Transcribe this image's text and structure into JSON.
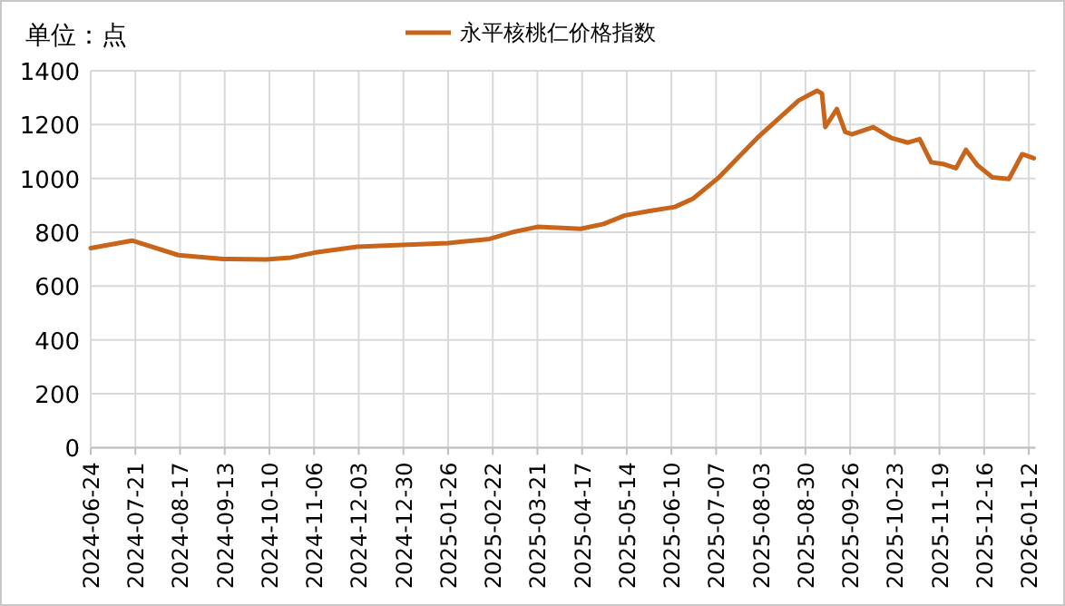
{
  "chart_data": {
    "type": "line",
    "ylabel": "单位：点",
    "legend": "top",
    "grid": true,
    "xlim": [
      "2024-06-24",
      "2026-01-16"
    ],
    "xticks": [
      "2024-06-24",
      "2024-07-21",
      "2024-08-17",
      "2024-09-13",
      "2024-10-10",
      "2024-11-06",
      "2024-12-03",
      "2024-12-30",
      "2025-01-26",
      "2025-02-22",
      "2025-03-21",
      "2025-04-17",
      "2025-05-14",
      "2025-06-10",
      "2025-07-07",
      "2025-08-03",
      "2025-08-30",
      "2025-09-26",
      "2025-10-23",
      "2025-11-19",
      "2025-12-16",
      "2026-01-12"
    ],
    "ylim": [
      0,
      1400
    ],
    "yticks": [
      0,
      200,
      400,
      600,
      800,
      1000,
      1200,
      1400
    ],
    "x": [
      "2024-06-24",
      "2024-07-19",
      "2024-08-16",
      "2024-09-12",
      "2024-10-08",
      "2024-10-23",
      "2024-11-06",
      "2024-12-02",
      "2024-12-29",
      "2025-01-26",
      "2025-02-20",
      "2025-03-07",
      "2025-03-21",
      "2025-04-05",
      "2025-04-16",
      "2025-04-30",
      "2025-05-13",
      "2025-05-28",
      "2025-06-12",
      "2025-06-23",
      "2025-07-08",
      "2025-08-02",
      "2025-08-26",
      "2025-09-06",
      "2025-09-09",
      "2025-09-11",
      "2025-09-18",
      "2025-09-23",
      "2025-09-27",
      "2025-10-10",
      "2025-10-21",
      "2025-10-31",
      "2025-11-07",
      "2025-11-14",
      "2025-11-21",
      "2025-11-29",
      "2025-12-05",
      "2025-12-12",
      "2025-12-21",
      "2025-12-31",
      "2026-01-08",
      "2026-01-15"
    ],
    "series": [
      {
        "name": "永平核桃仁价格指数",
        "color": "#c8651b",
        "values": [
          741,
          769,
          715,
          701,
          699,
          706,
          724,
          746,
          753,
          760,
          775,
          802,
          820,
          816,
          813,
          831,
          863,
          879,
          894,
          925,
          1000,
          1157,
          1290,
          1326,
          1315,
          1191,
          1258,
          1173,
          1164,
          1191,
          1150,
          1133,
          1146,
          1060,
          1054,
          1038,
          1106,
          1049,
          1004,
          998,
          1090,
          1075
        ]
      }
    ]
  }
}
